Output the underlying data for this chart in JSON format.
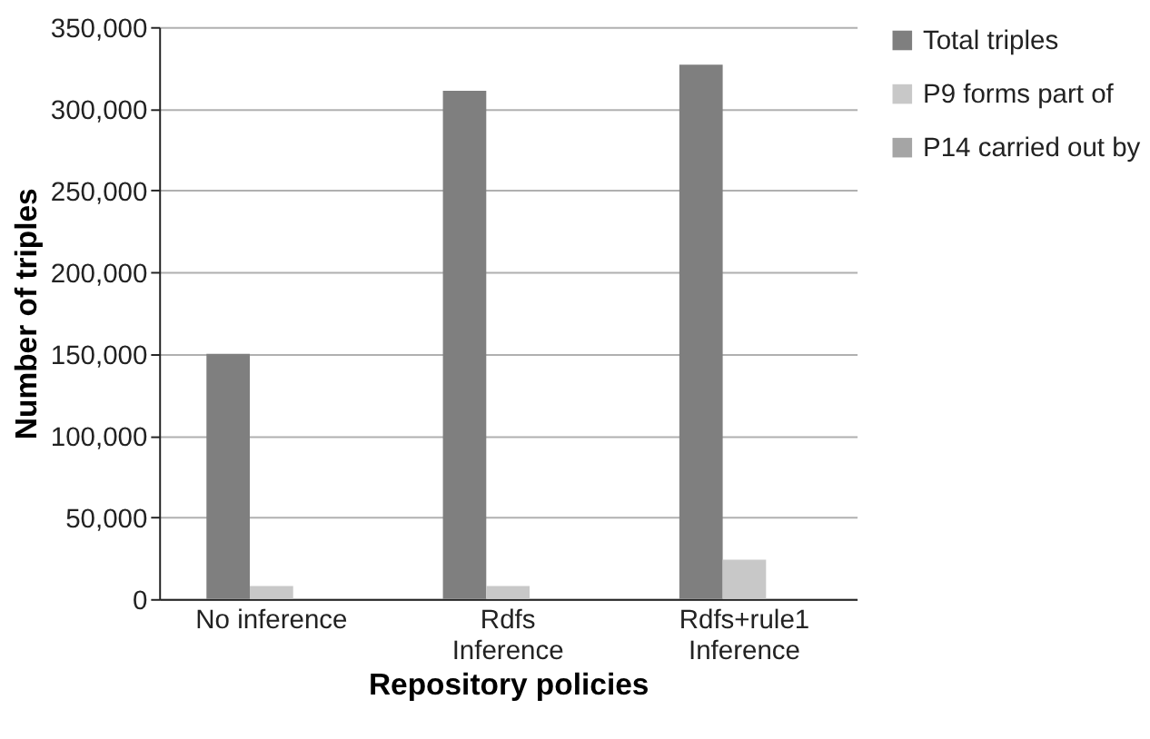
{
  "chart_data": {
    "type": "bar",
    "xlabel": "Repository policies",
    "ylabel": "Number of triples",
    "categories": [
      "No inference",
      "Rdfs Inference",
      "Rdfs+rule1 Inference"
    ],
    "series": [
      {
        "name": "Total triples",
        "color": "#7f7f7f",
        "values": [
          150000,
          311000,
          327000
        ]
      },
      {
        "name": "P9 forms part of",
        "color": "#c8c8c8",
        "values": [
          8000,
          8000,
          24000
        ]
      },
      {
        "name": "P14 carried out by",
        "color": "#a5a5a5",
        "values": [
          0,
          0,
          0
        ]
      }
    ],
    "ylim": [
      0,
      350000
    ],
    "yticks": [
      0,
      {
        "value": 50000,
        "label": "50,000"
      },
      {
        "value": 100000,
        "label": "100,000"
      },
      {
        "value": 150000,
        "label": "150,000"
      },
      {
        "value": 200000,
        "label": "200,000"
      },
      {
        "value": 250000,
        "label": "250,000"
      },
      {
        "value": 300000,
        "label": "300,000"
      },
      {
        "value": 350000,
        "label": "350,000"
      }
    ],
    "grid": "y",
    "legend": "right"
  }
}
